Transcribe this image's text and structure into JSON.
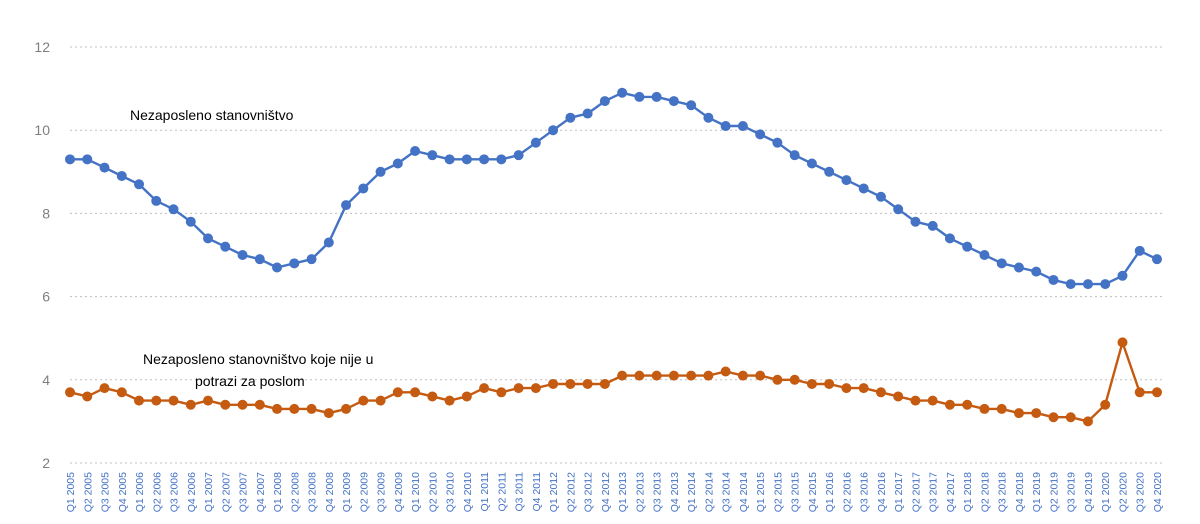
{
  "chart_data": {
    "type": "line",
    "title": "",
    "xlabel": "",
    "ylabel": "",
    "ylim": [
      2,
      12
    ],
    "yticks": [
      2,
      4,
      6,
      8,
      10,
      12
    ],
    "grid": true,
    "legend": "inline labels",
    "categories": [
      "Q1 2005",
      "Q2 2005",
      "Q3 2005",
      "Q4 2005",
      "Q1 2006",
      "Q2 2006",
      "Q3 2006",
      "Q4 2006",
      "Q1 2007",
      "Q2 2007",
      "Q3 2007",
      "Q4 2007",
      "Q1 2008",
      "Q2 2008",
      "Q3 2008",
      "Q4 2008",
      "Q1 2009",
      "Q2 2009",
      "Q3 2009",
      "Q4 2009",
      "Q1 2010",
      "Q2 2010",
      "Q3 2010",
      "Q4 2010",
      "Q1 2011",
      "Q2 2011",
      "Q3 2011",
      "Q4 2011",
      "Q1 2012",
      "Q2 2012",
      "Q3 2012",
      "Q4 2012",
      "Q1 2013",
      "Q2 2013",
      "Q3 2013",
      "Q4 2013",
      "Q1 2014",
      "Q2 2014",
      "Q3 2014",
      "Q4 2014",
      "Q1 2015",
      "Q2 2015",
      "Q3 2015",
      "Q4 2015",
      "Q1 2016",
      "Q2 2016",
      "Q3 2016",
      "Q4 2016",
      "Q1 2017",
      "Q2 2017",
      "Q3 2017",
      "Q4 2017",
      "Q1 2018",
      "Q2 2018",
      "Q3 2018",
      "Q4 2018",
      "Q1 2019",
      "Q2 2019",
      "Q3 2019",
      "Q4 2019",
      "Q1 2020",
      "Q2 2020",
      "Q3 2020",
      "Q4 2020"
    ],
    "series": [
      {
        "name": "Nezaposleno stanovništvo",
        "color": "#4472c4",
        "values": [
          9.3,
          9.3,
          9.1,
          8.9,
          8.7,
          8.3,
          8.1,
          7.8,
          7.4,
          7.2,
          7.0,
          6.9,
          6.7,
          6.8,
          6.9,
          7.3,
          8.2,
          8.6,
          9.0,
          9.2,
          9.5,
          9.4,
          9.3,
          9.3,
          9.3,
          9.3,
          9.4,
          9.7,
          10.0,
          10.3,
          10.4,
          10.7,
          10.9,
          10.8,
          10.8,
          10.7,
          10.6,
          10.3,
          10.1,
          10.1,
          9.9,
          9.7,
          9.4,
          9.2,
          9.0,
          8.8,
          8.6,
          8.4,
          8.1,
          7.8,
          7.7,
          7.4,
          7.2,
          7.0,
          6.8,
          6.7,
          6.6,
          6.4,
          6.3,
          6.3,
          6.3,
          6.5,
          7.1,
          6.9
        ]
      },
      {
        "name": "Nezaposleno stanovništvo koje nije u potrazi za poslom",
        "color": "#c55a11",
        "values": [
          3.7,
          3.6,
          3.8,
          3.7,
          3.5,
          3.5,
          3.5,
          3.4,
          3.5,
          3.4,
          3.4,
          3.4,
          3.3,
          3.3,
          3.3,
          3.2,
          3.3,
          3.5,
          3.5,
          3.7,
          3.7,
          3.6,
          3.5,
          3.6,
          3.8,
          3.7,
          3.8,
          3.8,
          3.9,
          3.9,
          3.9,
          3.9,
          4.1,
          4.1,
          4.1,
          4.1,
          4.1,
          4.1,
          4.2,
          4.1,
          4.1,
          4.0,
          4.0,
          3.9,
          3.9,
          3.8,
          3.8,
          3.7,
          3.6,
          3.5,
          3.5,
          3.4,
          3.4,
          3.3,
          3.3,
          3.2,
          3.2,
          3.1,
          3.1,
          3.0,
          3.4,
          4.9,
          3.7,
          3.7
        ]
      }
    ],
    "annotations": [
      {
        "series": 0,
        "line1": "Nezaposleno stanovništvo",
        "line2": ""
      },
      {
        "series": 1,
        "line1": "Nezaposleno stanovništvo koje nije u",
        "line2": "potrazi za poslom"
      }
    ]
  }
}
